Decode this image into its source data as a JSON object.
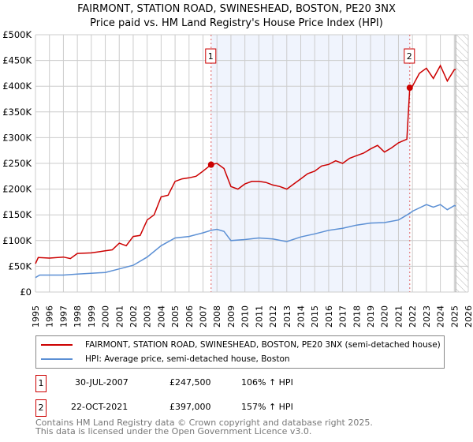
{
  "chart_data": {
    "type": "line",
    "title": "FAIRMONT, STATION ROAD, SWINESHEAD, BOSTON, PE20 3NX",
    "subtitle": "Price paid vs. HM Land Registry's House Price Index (HPI)",
    "xlim": [
      1995,
      2026
    ],
    "ylim": [
      0,
      500000
    ],
    "x_ticks": [
      "1995",
      "1996",
      "1997",
      "1998",
      "1999",
      "2000",
      "2001",
      "2002",
      "2003",
      "2004",
      "2005",
      "2006",
      "2007",
      "2008",
      "2009",
      "2010",
      "2011",
      "2012",
      "2013",
      "2014",
      "2015",
      "2016",
      "2017",
      "2018",
      "2019",
      "2020",
      "2021",
      "2022",
      "2023",
      "2024",
      "2025",
      "2026"
    ],
    "y_ticks": [
      {
        "v": 0,
        "label": "£0"
      },
      {
        "v": 50000,
        "label": "£50K"
      },
      {
        "v": 100000,
        "label": "£100K"
      },
      {
        "v": 150000,
        "label": "£150K"
      },
      {
        "v": 200000,
        "label": "£200K"
      },
      {
        "v": 250000,
        "label": "£250K"
      },
      {
        "v": 300000,
        "label": "£300K"
      },
      {
        "v": 350000,
        "label": "£350K"
      },
      {
        "v": 400000,
        "label": "£400K"
      },
      {
        "v": 450000,
        "label": "£450K"
      },
      {
        "v": 500000,
        "label": "£500K"
      }
    ],
    "grid": true,
    "shaded_range": [
      2007.58,
      2021.81
    ],
    "future_hatch_from": 2025.1,
    "series": [
      {
        "name": "FAIRMONT, STATION ROAD, SWINESHEAD, BOSTON, PE20 3NX (semi-detached house)",
        "color": "#cc0000",
        "x": [
          1995,
          1995.2,
          1996,
          1997,
          1997.5,
          1998,
          1999,
          2000,
          2000.5,
          2001,
          2001.5,
          2002,
          2002.5,
          2003,
          2003.5,
          2004,
          2004.5,
          2005,
          2005.5,
          2006,
          2006.5,
          2007,
          2007.58,
          2008,
          2008.5,
          2009,
          2009.5,
          2010,
          2010.5,
          2011,
          2011.5,
          2012,
          2012.5,
          2013,
          2013.5,
          2014,
          2014.5,
          2015,
          2015.5,
          2016,
          2016.5,
          2017,
          2017.5,
          2018,
          2018.5,
          2019,
          2019.5,
          2020,
          2020.5,
          2021,
          2021.6,
          2021.81,
          2022,
          2022.5,
          2023,
          2023.5,
          2024,
          2024.5,
          2025,
          2025.1
        ],
        "y": [
          55000,
          67000,
          66000,
          68000,
          65000,
          75000,
          76000,
          80000,
          82000,
          95000,
          90000,
          108000,
          110000,
          140000,
          150000,
          185000,
          188000,
          215000,
          220000,
          222000,
          225000,
          235000,
          247500,
          250000,
          240000,
          205000,
          200000,
          210000,
          215000,
          215000,
          213000,
          208000,
          205000,
          200000,
          210000,
          220000,
          230000,
          235000,
          245000,
          248000,
          255000,
          250000,
          260000,
          265000,
          270000,
          278000,
          285000,
          272000,
          280000,
          290000,
          297000,
          397000,
          400000,
          425000,
          435000,
          415000,
          440000,
          410000,
          432000,
          432000
        ]
      },
      {
        "name": "HPI: Average price, semi-detached house, Boston",
        "color": "#5b8fd4",
        "x": [
          1995,
          1995.3,
          1997,
          1998,
          2000,
          2001,
          2002,
          2003,
          2004,
          2005,
          2006,
          2007,
          2007.58,
          2008,
          2008.5,
          2009,
          2010,
          2011,
          2012,
          2013,
          2014,
          2015,
          2016,
          2017,
          2018,
          2019,
          2020,
          2021,
          2021.81,
          2022,
          2023,
          2023.5,
          2024,
          2024.5,
          2025,
          2025.1
        ],
        "y": [
          28000,
          33000,
          33000,
          35000,
          38000,
          45000,
          52000,
          68000,
          90000,
          105000,
          108000,
          115000,
          120000,
          122000,
          118000,
          100000,
          102000,
          105000,
          103000,
          98000,
          107000,
          113000,
          120000,
          124000,
          130000,
          134000,
          135000,
          140000,
          153000,
          157000,
          170000,
          165000,
          170000,
          160000,
          168000,
          167000
        ]
      }
    ],
    "sales": [
      {
        "label": "1",
        "x": 2007.58,
        "y": 247500,
        "date": "30-JUL-2007",
        "price": "£247,500",
        "hpi": "106% ↑ HPI"
      },
      {
        "label": "2",
        "x": 2021.81,
        "y": 397000,
        "date": "22-OCT-2021",
        "price": "£397,000",
        "hpi": "157% ↑ HPI"
      }
    ]
  },
  "footer": {
    "line1": "Contains HM Land Registry data © Crown copyright and database right 2025.",
    "line2": "This data is licensed under the Open Government Licence v3.0."
  }
}
